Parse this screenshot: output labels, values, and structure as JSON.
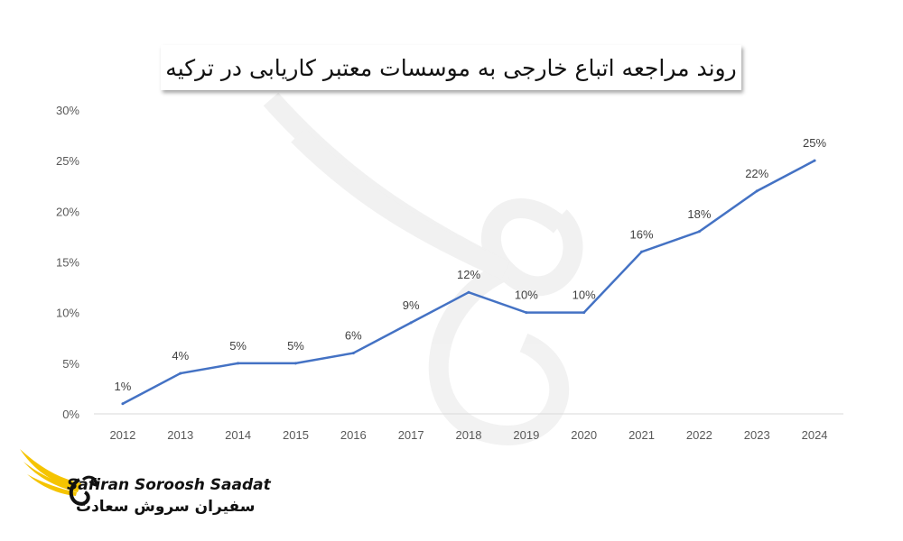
{
  "chart_data": {
    "type": "line",
    "title": "روند مراجعه اتباع خارجی به موسسات معتبر کاریابی در ترکیه",
    "xlabel": "",
    "ylabel": "",
    "categories": [
      "2012",
      "2013",
      "2014",
      "2015",
      "2016",
      "2017",
      "2018",
      "2019",
      "2020",
      "2021",
      "2022",
      "2023",
      "2024"
    ],
    "values": [
      1,
      4,
      5,
      5,
      6,
      9,
      12,
      10,
      10,
      16,
      18,
      22,
      25
    ],
    "data_labels": [
      "1%",
      "4%",
      "5%",
      "5%",
      "6%",
      "9%",
      "12%",
      "10%",
      "10%",
      "16%",
      "18%",
      "22%",
      "25%"
    ],
    "y_ticks": [
      0,
      5,
      10,
      15,
      20,
      25,
      30
    ],
    "y_tick_labels": [
      "0%",
      "5%",
      "10%",
      "15%",
      "20%",
      "25%",
      "30%"
    ],
    "ylim": [
      0,
      30
    ],
    "grid": false,
    "legend": "none",
    "line_color": "#4472c4"
  },
  "logo": {
    "name_en": "Safiran Soroosh Saadat",
    "name_fa": "سفیران سروش سعادت",
    "wing_color": "#f5c400"
  }
}
